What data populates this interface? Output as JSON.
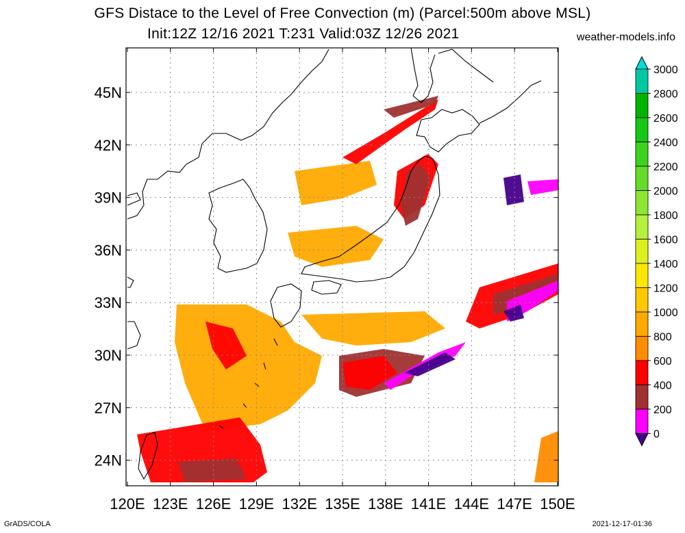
{
  "header": {
    "title": "GFS Distace to the Level of Free Convection (m) (Parcel:500m above MSL)",
    "subtitle": "Init:12Z 12/16 2021 T:231 Valid:03Z 12/26 2021",
    "site": "weather-models.info"
  },
  "footer": {
    "left": "GrADS/COLA",
    "right": "2021-12-17-01:36"
  },
  "map": {
    "lon_labels": [
      "120E",
      "123E",
      "126E",
      "129E",
      "132E",
      "135E",
      "138E",
      "141E",
      "144E",
      "147E",
      "150E"
    ],
    "lat_labels": [
      "45N",
      "42N",
      "39N",
      "36N",
      "33N",
      "30N",
      "27N",
      "24N"
    ]
  },
  "legend": {
    "labels": [
      "3000",
      "2800",
      "2600",
      "2400",
      "2200",
      "2000",
      "1800",
      "1600",
      "1400",
      "1200",
      "1000",
      "800",
      "600",
      "400",
      "200",
      "0"
    ],
    "colors": [
      "#00dcdc",
      "#00c8a0",
      "#00b400",
      "#14c814",
      "#3cd21e",
      "#64dc28",
      "#8ce632",
      "#b4f03c",
      "#dcf01e",
      "#ffe600",
      "#ffc800",
      "#ffaa00",
      "#ff8c00",
      "#ff0000",
      "#a03232",
      "#ff00ff",
      "#46008c"
    ]
  }
}
